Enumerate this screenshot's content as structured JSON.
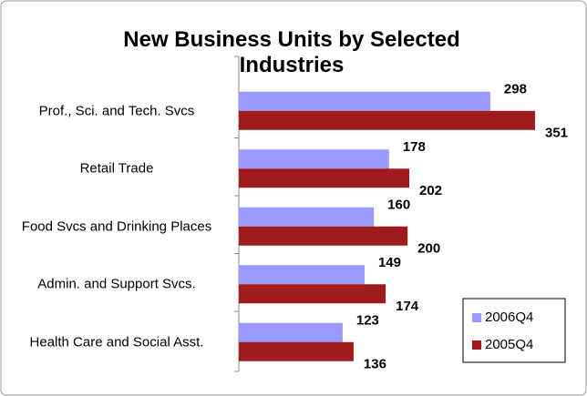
{
  "chart_data": {
    "type": "bar",
    "orientation": "horizontal",
    "title": "New Business Units  by Selected Industries",
    "categories": [
      "Prof., Sci. and Tech. Svcs",
      "Retail Trade",
      "Food Svcs and Drinking Places",
      "Admin. and Support Svcs.",
      "Health Care and Social Asst."
    ],
    "series": [
      {
        "name": "2006Q4",
        "color": "#9999ff",
        "values": [
          298,
          178,
          160,
          149,
          123
        ]
      },
      {
        "name": "2005Q4",
        "color": "#a01c1c",
        "values": [
          351,
          202,
          200,
          174,
          136
        ]
      }
    ],
    "legend": "lower right"
  }
}
